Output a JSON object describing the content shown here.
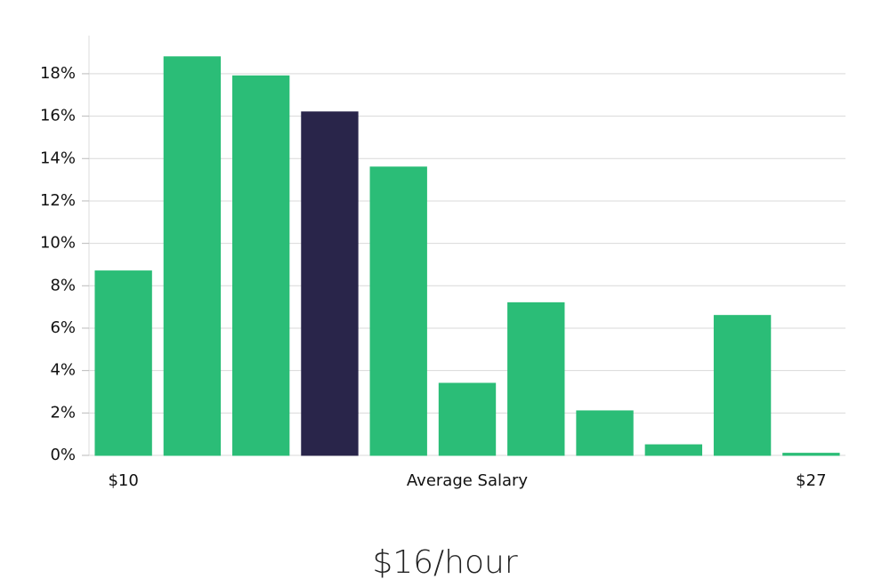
{
  "chart_data": {
    "type": "bar",
    "categories": [
      "$10",
      null,
      null,
      null,
      null,
      null,
      null,
      null,
      null,
      null,
      "$27"
    ],
    "values": [
      8.7,
      18.8,
      17.9,
      16.2,
      13.6,
      3.4,
      7.2,
      2.1,
      0.5,
      6.6,
      0.1
    ],
    "bar_colors": [
      "#2bbd77",
      "#2bbd77",
      "#2bbd77",
      "#29254a",
      "#2bbd77",
      "#2bbd77",
      "#2bbd77",
      "#2bbd77",
      "#2bbd77",
      "#2bbd77",
      "#2bbd77"
    ],
    "x_label": "Average Salary",
    "annotation": "$16/hour",
    "ylim": [
      0,
      19.8
    ],
    "yticks": [
      {
        "value": 0,
        "label": "0%"
      },
      {
        "value": 2,
        "label": "2%"
      },
      {
        "value": 4,
        "label": "4%"
      },
      {
        "value": 6,
        "label": "6%"
      },
      {
        "value": 8,
        "label": "8%"
      },
      {
        "value": 10,
        "label": "10%"
      },
      {
        "value": 12,
        "label": "12%"
      },
      {
        "value": 14,
        "label": "14%"
      },
      {
        "value": 16,
        "label": "16%"
      },
      {
        "value": 18,
        "label": "18%"
      }
    ],
    "grid": true
  }
}
